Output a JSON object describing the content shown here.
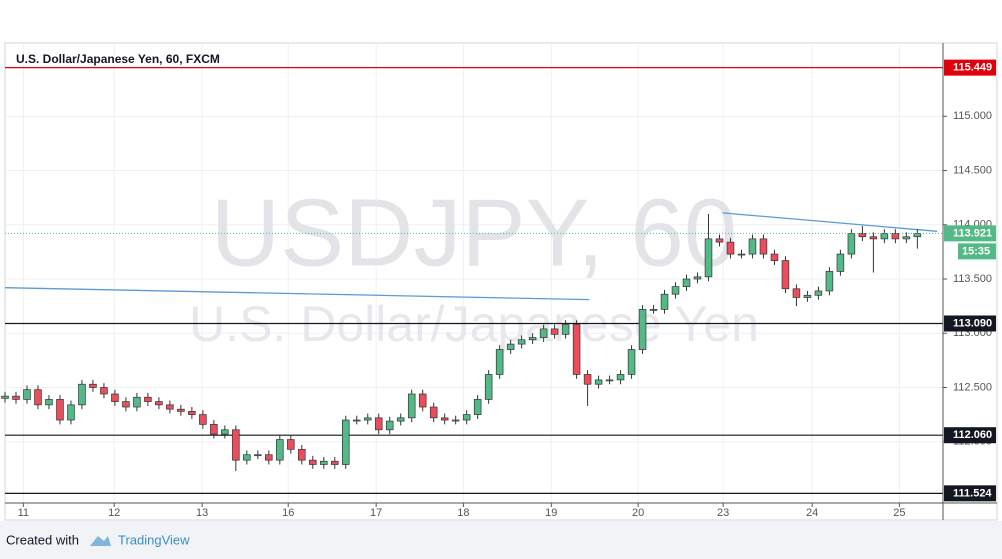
{
  "chart_data": {
    "type": "candlestick",
    "title": "U.S. Dollar/Japanese Yen, 60, FXCM",
    "watermark": "USDJPY, 60",
    "watermark_subtitle": "U.S. Dollar/Japanese Yen",
    "footer_text": "Created with",
    "footer_brand": "TradingView",
    "up_color": "#53b987",
    "down_color": "#eb4d5c",
    "grid": true,
    "xlim": [
      0,
      256
    ],
    "ylim": [
      111.435,
      115.676
    ],
    "xticks": [
      {
        "value": 5,
        "label": "11"
      },
      {
        "value": 29.8,
        "label": "12"
      },
      {
        "value": 53.8,
        "label": "13"
      },
      {
        "value": 77.3,
        "label": "16"
      },
      {
        "value": 101.3,
        "label": "17"
      },
      {
        "value": 125.1,
        "label": "18"
      },
      {
        "value": 149.1,
        "label": "19"
      },
      {
        "value": 172.8,
        "label": "20"
      },
      {
        "value": 196.0,
        "label": "23"
      },
      {
        "value": 220.3,
        "label": "24"
      },
      {
        "value": 244.1,
        "label": "25"
      }
    ],
    "yticks": [
      {
        "value": 112,
        "label": "112.000"
      },
      {
        "value": 112.5,
        "label": "112.500"
      },
      {
        "value": 113,
        "label": "113.000"
      },
      {
        "value": 113.5,
        "label": "113.500"
      },
      {
        "value": 114,
        "label": "114.000"
      },
      {
        "value": 114.5,
        "label": "114.500"
      },
      {
        "value": 115,
        "label": "115.000"
      }
    ],
    "x": [
      0,
      3,
      6,
      9,
      12,
      15,
      18,
      21,
      24,
      27,
      30,
      33,
      36,
      39,
      42,
      45,
      48,
      51,
      54,
      57,
      60,
      63,
      66,
      69,
      72,
      75,
      78,
      81,
      84,
      87,
      90,
      93,
      96,
      99,
      102,
      105,
      108,
      111,
      114,
      117,
      120,
      123,
      126,
      129,
      132,
      135,
      138,
      141,
      144,
      147,
      150,
      153,
      156,
      159,
      162,
      165,
      168,
      171,
      174,
      177,
      180,
      183,
      186,
      189,
      192,
      195,
      198,
      201,
      204,
      207,
      210,
      213,
      216,
      219,
      222,
      225,
      228,
      231,
      234,
      237,
      240,
      243,
      246,
      249
    ],
    "open": [
      112.4,
      112.42,
      112.39,
      112.48,
      112.34,
      112.39,
      112.2,
      112.34,
      112.53,
      112.5,
      112.44,
      112.37,
      112.32,
      112.41,
      112.37,
      112.34,
      112.3,
      112.28,
      112.25,
      112.16,
      112.07,
      112.11,
      111.83,
      111.88,
      111.88,
      111.83,
      112.02,
      111.93,
      111.83,
      111.79,
      111.82,
      111.79,
      112.2,
      112.2,
      112.22,
      112.11,
      112.19,
      112.22,
      112.44,
      112.32,
      112.22,
      112.2,
      112.2,
      112.25,
      112.39,
      112.62,
      112.85,
      112.9,
      112.94,
      112.96,
      113.04,
      112.99,
      113.08,
      112.62,
      112.53,
      112.57,
      112.57,
      112.62,
      112.85,
      113.22,
      113.22,
      113.36,
      113.43,
      113.5,
      113.52,
      113.87,
      113.84,
      113.73,
      113.73,
      113.87,
      113.73,
      113.67,
      113.41,
      113.33,
      113.35,
      113.39,
      113.57,
      113.73,
      113.92,
      113.89,
      113.87,
      113.92,
      113.87,
      113.89
    ],
    "high": [
      112.46,
      112.46,
      112.52,
      112.52,
      112.43,
      112.43,
      112.38,
      112.57,
      112.57,
      112.54,
      112.48,
      112.41,
      112.45,
      112.45,
      112.41,
      112.38,
      112.34,
      112.32,
      112.29,
      112.2,
      112.15,
      112.15,
      111.92,
      111.92,
      111.92,
      112.06,
      112.06,
      111.97,
      111.87,
      111.86,
      111.86,
      112.24,
      112.24,
      112.26,
      112.26,
      112.23,
      112.26,
      112.48,
      112.48,
      112.36,
      112.26,
      112.24,
      112.29,
      112.43,
      112.66,
      112.89,
      112.94,
      112.98,
      113.0,
      113.08,
      113.08,
      113.12,
      113.12,
      112.66,
      112.61,
      112.61,
      112.66,
      112.89,
      113.26,
      113.26,
      113.4,
      113.47,
      113.54,
      113.56,
      114.1,
      113.91,
      113.88,
      113.77,
      113.91,
      113.91,
      113.77,
      113.71,
      113.45,
      113.39,
      113.43,
      113.61,
      113.77,
      113.96,
      113.99,
      113.93,
      113.96,
      113.96,
      113.93,
      113.96
    ],
    "low": [
      112.36,
      112.35,
      112.35,
      112.3,
      112.3,
      112.16,
      112.16,
      112.3,
      112.46,
      112.4,
      112.33,
      112.28,
      112.28,
      112.33,
      112.3,
      112.26,
      112.24,
      112.21,
      112.12,
      112.03,
      112.03,
      111.73,
      111.79,
      111.84,
      111.79,
      111.79,
      111.89,
      111.79,
      111.75,
      111.75,
      111.75,
      111.75,
      112.16,
      112.16,
      112.07,
      112.07,
      112.15,
      112.18,
      112.28,
      112.18,
      112.16,
      112.16,
      112.16,
      112.21,
      112.35,
      112.58,
      112.81,
      112.86,
      112.9,
      112.92,
      112.95,
      112.95,
      112.58,
      112.33,
      112.49,
      112.53,
      112.53,
      112.58,
      112.81,
      113.18,
      113.18,
      113.32,
      113.39,
      113.46,
      113.48,
      113.8,
      113.69,
      113.69,
      113.69,
      113.69,
      113.63,
      113.37,
      113.25,
      113.29,
      113.31,
      113.35,
      113.53,
      113.69,
      113.85,
      113.56,
      113.83,
      113.83,
      113.83,
      113.78
    ],
    "close": [
      112.42,
      112.39,
      112.48,
      112.34,
      112.39,
      112.2,
      112.34,
      112.53,
      112.5,
      112.44,
      112.37,
      112.32,
      112.41,
      112.37,
      112.34,
      112.3,
      112.28,
      112.25,
      112.16,
      112.07,
      112.11,
      111.83,
      111.88,
      111.88,
      111.83,
      112.02,
      111.93,
      111.83,
      111.79,
      111.82,
      111.79,
      112.2,
      112.2,
      112.22,
      112.11,
      112.19,
      112.22,
      112.44,
      112.32,
      112.22,
      112.2,
      112.2,
      112.25,
      112.39,
      112.62,
      112.85,
      112.9,
      112.94,
      112.96,
      113.04,
      112.99,
      113.08,
      112.62,
      112.53,
      112.57,
      112.57,
      112.62,
      112.85,
      113.22,
      113.22,
      113.36,
      113.43,
      113.5,
      113.52,
      113.87,
      113.84,
      113.73,
      113.73,
      113.87,
      113.73,
      113.67,
      113.41,
      113.33,
      113.35,
      113.39,
      113.57,
      113.73,
      113.92,
      113.89,
      113.87,
      113.92,
      113.87,
      113.89,
      113.92
    ],
    "levels": [
      {
        "value": 115.449,
        "color": "#e0000d"
      },
      {
        "value": 113.09,
        "label": "113.090",
        "color": "#131722"
      },
      {
        "value": 112.06,
        "label": "112.060",
        "color": "#131722"
      },
      {
        "value": 111.524,
        "color": "#131722"
      }
    ],
    "last_price": {
      "value": 113.921,
      "time": "15:35",
      "color": "#53b987"
    },
    "trendlines": [
      {
        "x": [
          0,
          159.5
        ],
        "y": [
          113.42,
          113.31
        ],
        "color": "#5b9bd5"
      },
      {
        "x": [
          195.8,
          254.4
        ],
        "y": [
          114.11,
          113.94
        ],
        "color": "#5b9bd5"
      }
    ]
  }
}
